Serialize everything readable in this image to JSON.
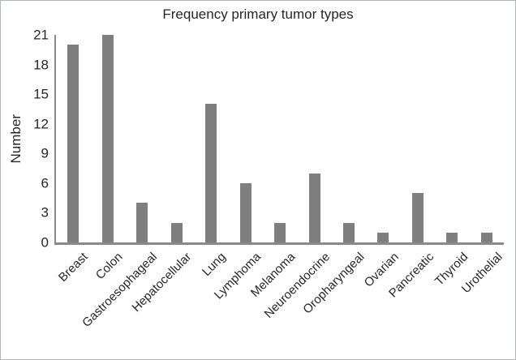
{
  "chart_data": {
    "type": "bar",
    "title": "Frequency primary tumor types",
    "xlabel": "",
    "ylabel": "Number",
    "categories": [
      "Breast",
      "Colon",
      "Gastroesophageal",
      "Hepatocellular",
      "Lung",
      "Lymphoma",
      "Melanoma",
      "Neuroendocrine",
      "Oropharyngeal",
      "Ovarian",
      "Pancreatic",
      "Thyroid",
      "Urothelial"
    ],
    "values": [
      20,
      21,
      4,
      2,
      14,
      6,
      2,
      7,
      2,
      1,
      5,
      1,
      1
    ],
    "ylim": [
      0,
      21
    ],
    "yticks": [
      0,
      3,
      6,
      9,
      12,
      15,
      18,
      21
    ],
    "grid": false,
    "legend": false,
    "bar_color": "#7f7f7f",
    "axis_color": "#8a8a8a",
    "text_color": "#262626",
    "x_tick_rotation_deg": -45
  }
}
